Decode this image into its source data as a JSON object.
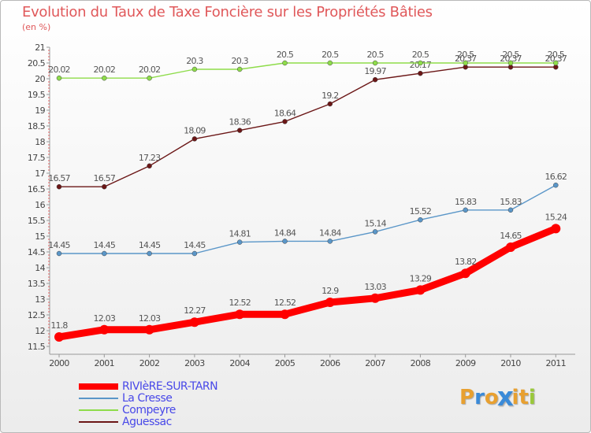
{
  "header": {
    "title": "Evolution du Taux de Taxe Foncière sur les Propriétés Bâties",
    "subtitle": "(en %)"
  },
  "logo": {
    "text": "Proxiti",
    "letters": [
      "P",
      "r",
      "o",
      "x",
      "i",
      "t",
      "i"
    ],
    "colors": [
      "#e8a030",
      "#3a8ad8",
      "#e8a030",
      "#3a8ad8",
      "#e8a030",
      "#e8a030",
      "#9ac83a"
    ]
  },
  "chart_data": {
    "type": "line",
    "title": "Evolution du Taux de Taxe Foncière sur les Propriétés Bâties",
    "ylabel": "(en %)",
    "x": [
      "2000",
      "2001",
      "2002",
      "2003",
      "2004",
      "2005",
      "2006",
      "2007",
      "2008",
      "2009",
      "2010",
      "2011"
    ],
    "ylim": [
      11.5,
      21
    ],
    "yticks": [
      "11.5",
      "12",
      "12.5",
      "13",
      "13.5",
      "14",
      "14.5",
      "15",
      "15.5",
      "16",
      "16.5",
      "17",
      "17.5",
      "18",
      "18.5",
      "19",
      "19.5",
      "20",
      "20.5",
      "21"
    ],
    "grid": false,
    "legend_position": "bottom-left",
    "series": [
      {
        "name": "RIVIèRE-SUR-TARN",
        "color": "#ff0000",
        "values": [
          11.8,
          12.03,
          12.03,
          12.27,
          12.52,
          12.52,
          12.9,
          13.03,
          13.29,
          13.82,
          14.65,
          15.24
        ],
        "labels": [
          "11.8",
          "12.03",
          "12.03",
          "12.27",
          "12.52",
          "12.52",
          "12.9",
          "13.03",
          "13.29",
          "13.82",
          "14.65",
          "15.24"
        ]
      },
      {
        "name": "La Cresse",
        "color": "#5a96c8",
        "values": [
          14.45,
          14.45,
          14.45,
          14.45,
          14.81,
          14.84,
          14.84,
          15.14,
          15.52,
          15.83,
          15.83,
          16.62
        ],
        "labels": [
          "14.45",
          "14.45",
          "14.45",
          "14.45",
          "14.81",
          "14.84",
          "14.84",
          "15.14",
          "15.52",
          "15.83",
          "15.83",
          "16.62"
        ]
      },
      {
        "name": "Compeyre",
        "color": "#8edc4a",
        "values": [
          20.02,
          20.02,
          20.02,
          20.3,
          20.3,
          20.5,
          20.5,
          20.5,
          20.5,
          20.5,
          20.5,
          20.5
        ],
        "labels": [
          "20.02",
          "20.02",
          "20.02",
          "20.3",
          "20.3",
          "20.5",
          "20.5",
          "20.5",
          "20.5",
          "20.5",
          "20.5",
          "20.5"
        ]
      },
      {
        "name": "Aguessac",
        "color": "#6b1616",
        "values": [
          16.57,
          16.57,
          17.23,
          18.09,
          18.36,
          18.64,
          19.2,
          19.97,
          20.17,
          20.37,
          20.37,
          20.37
        ],
        "labels": [
          "16.57",
          "16.57",
          "17.23",
          "18.09",
          "18.36",
          "18.64",
          "19.2",
          "19.97",
          "20.17",
          "20.37",
          "20.37",
          "20.37"
        ]
      }
    ]
  }
}
